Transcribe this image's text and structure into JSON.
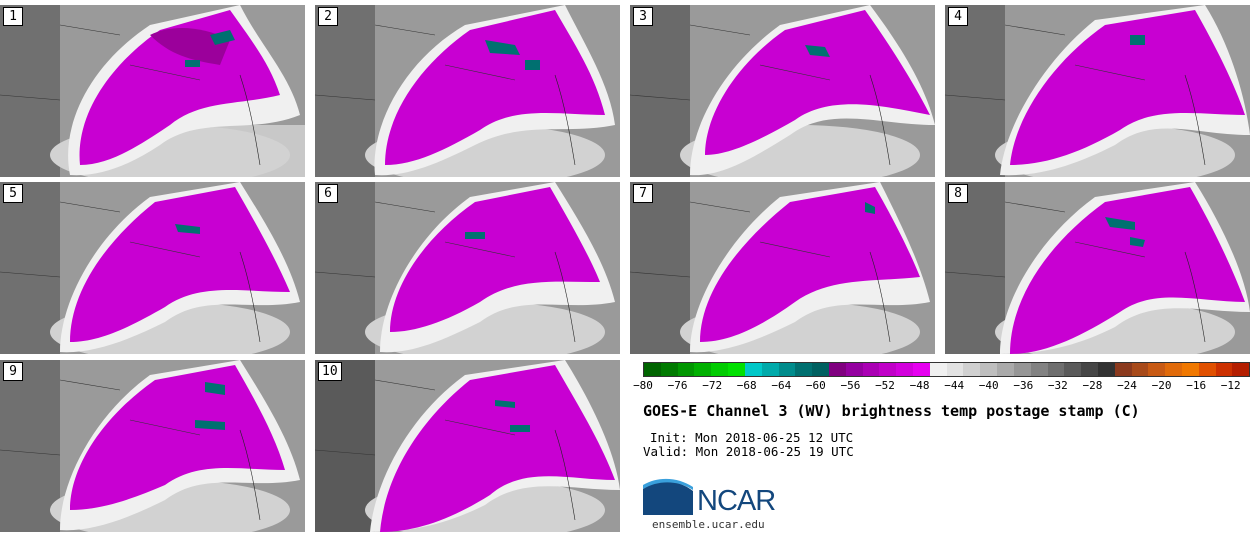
{
  "panels": [
    "1",
    "2",
    "3",
    "4",
    "5",
    "6",
    "7",
    "8",
    "9",
    "10"
  ],
  "colorbar": {
    "ticks": [
      "−80",
      "−76",
      "−72",
      "−68",
      "−64",
      "−60",
      "−56",
      "−52",
      "−48",
      "−44",
      "−40",
      "−36",
      "−32",
      "−28",
      "−24",
      "−20",
      "−16",
      "−12"
    ],
    "colors": [
      "#006400",
      "#007a00",
      "#009600",
      "#00b000",
      "#00cc00",
      "#00e000",
      "#00c8c8",
      "#00aaaa",
      "#008c8c",
      "#007070",
      "#006060",
      "#800080",
      "#9400a0",
      "#aa00b4",
      "#c000c8",
      "#d200dc",
      "#e600f0",
      "#f0f0f0",
      "#e2e2e2",
      "#d0d0d0",
      "#bebebe",
      "#aaaaaa",
      "#969696",
      "#828282",
      "#6e6e6e",
      "#5a5a5a",
      "#464646",
      "#323232",
      "#8b3a1e",
      "#a84a1a",
      "#c85a14",
      "#e06a0a",
      "#f07800",
      "#e05000",
      "#cc3000",
      "#b41e00"
    ]
  },
  "title": "GOES-E Channel 3 (WV) brightness temp postage stamp (C)",
  "init": "Init: Mon 2018-06-25 12 UTC",
  "valid": "Valid: Mon 2018-06-25 19 UTC",
  "logo": {
    "name": "NCAR",
    "url": "ensemble.ucar.edu"
  }
}
